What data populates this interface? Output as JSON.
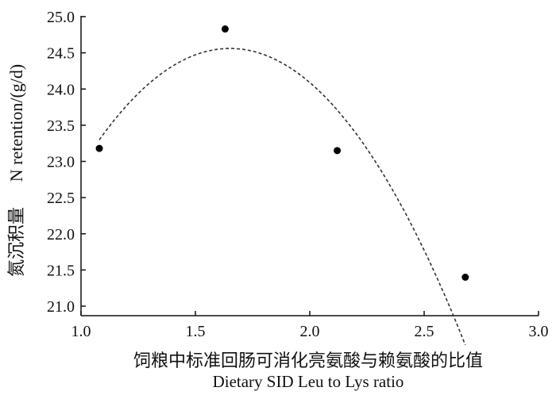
{
  "chart_data": {
    "type": "scatter",
    "x_label_cn": "饲粮中标准回肠可消化亮氨酸与赖氨酸的比值",
    "x_label_en": "Dietary SID Leu to Lys ratio",
    "y_label_cn": "氮沉积量",
    "y_label_en": "N retention/(g/d)",
    "xlim": [
      1.0,
      3.0
    ],
    "ylim": [
      21.0,
      25.0
    ],
    "x_ticks": [
      "1.0",
      "1.5",
      "2.0",
      "2.5",
      "3.0"
    ],
    "y_ticks": [
      "21.0",
      "21.5",
      "22.0",
      "22.5",
      "23.0",
      "23.5",
      "24.0",
      "24.5",
      "25.0"
    ],
    "x_tick_values": [
      1.0,
      1.5,
      2.0,
      2.5,
      3.0
    ],
    "y_tick_values": [
      21.0,
      21.5,
      22.0,
      22.5,
      23.0,
      23.5,
      24.0,
      24.5,
      25.0
    ],
    "points": [
      {
        "x": 1.08,
        "y": 23.18
      },
      {
        "x": 1.63,
        "y": 24.83
      },
      {
        "x": 2.12,
        "y": 23.15
      },
      {
        "x": 2.68,
        "y": 21.4
      }
    ],
    "trend": {
      "style": "dashed",
      "fit": "quadratic",
      "x_range": [
        1.08,
        2.68
      ],
      "coefficients": [
        14.01,
        12.78,
        -3.87
      ]
    },
    "grid": false
  }
}
